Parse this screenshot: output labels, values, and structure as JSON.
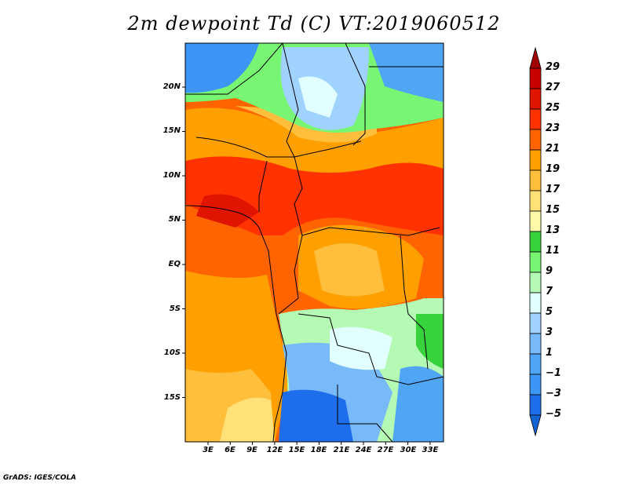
{
  "title": "2m dewpoint Td (C) VT:2019060512",
  "footer": "GrADS: IGES/COLA",
  "map": {
    "lon_range": [
      0,
      35
    ],
    "lat_range": [
      -20,
      25
    ],
    "x_ticks": [
      "3E",
      "6E",
      "9E",
      "12E",
      "15E",
      "18E",
      "21E",
      "24E",
      "27E",
      "30E",
      "33E"
    ],
    "y_ticks": [
      "20N",
      "15N",
      "10N",
      "5N",
      "EQ",
      "5S",
      "10S",
      "15S"
    ]
  },
  "colorbar": {
    "labels": [
      "29",
      "27",
      "25",
      "23",
      "21",
      "19",
      "17",
      "15",
      "13",
      "11",
      "9",
      "7",
      "5",
      "3",
      "1",
      "−1",
      "−3",
      "−5"
    ],
    "colors": [
      "#a00000",
      "#c80000",
      "#e11400",
      "#ff3200",
      "#ff6400",
      "#ffa000",
      "#ffbe3c",
      "#ffe178",
      "#fffaaa",
      "#37d23c",
      "#78f573",
      "#b4fab4",
      "#e1ffff",
      "#a0d2ff",
      "#78b9fa",
      "#50a5f5",
      "#3c96f5",
      "#1e6eeb",
      "#1464d2"
    ]
  }
}
